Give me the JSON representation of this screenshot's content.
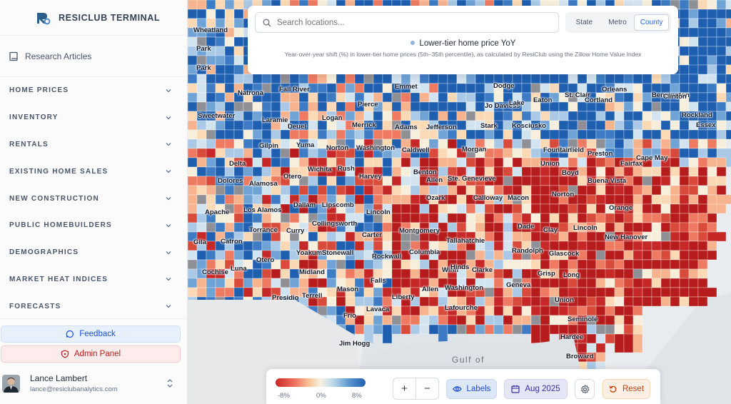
{
  "app": {
    "title": "RESICLUB TERMINAL"
  },
  "sidebar": {
    "research_label": "Research Articles",
    "items": [
      {
        "label": "HOME PRICES"
      },
      {
        "label": "INVENTORY"
      },
      {
        "label": "RENTALS"
      },
      {
        "label": "EXISTING HOME SALES"
      },
      {
        "label": "NEW CONSTRUCTION"
      },
      {
        "label": "PUBLIC HOMEBUILDERS"
      },
      {
        "label": "DEMOGRAPHICS"
      },
      {
        "label": "MARKET HEAT INDICES"
      },
      {
        "label": "FORECASTS"
      }
    ],
    "feedback_label": "Feedback",
    "admin_label": "Admin Panel",
    "user": {
      "name": "Lance Lambert",
      "email": "lance@resiclubanalytics.com"
    }
  },
  "search": {
    "placeholder": "Search locations..."
  },
  "geo_levels": {
    "options": [
      "State",
      "Metro",
      "County"
    ],
    "selected": "County"
  },
  "metric": {
    "title": "Lower-tier home price YoY",
    "description": "Year-over-year shift (%) in lower-tier home prices (5th–35th percentile), as calculated by ResiClub using the Zillow Home Value Index"
  },
  "legend": {
    "min_label": "-8%",
    "mid_label": "0%",
    "max_label": "8%"
  },
  "controls": {
    "zoom_in": "+",
    "zoom_out": "−",
    "labels_label": "Labels",
    "date_label": "Aug 2025",
    "reset_label": "Reset"
  },
  "map_labels": {
    "counties": [
      "Wheatland",
      "Park",
      "Park",
      "Natrona",
      "Sweetwater",
      "Laramie",
      "Fall River",
      "Logan",
      "Deuel",
      "Gilpin",
      "Yuma",
      "Delta",
      "Dolores",
      "Alamosa",
      "Otero",
      "Apache",
      "Los Alamos",
      "Catron",
      "Torrance",
      "Curry",
      "Gila",
      "Otero",
      "Cochise",
      "Luna",
      "Presidio",
      "Terrell",
      "Midland",
      "Yoakum",
      "Stonewall",
      "Dallam",
      "Lipscomb",
      "Collingsworth",
      "Norton",
      "Washington",
      "Wichita",
      "Rush",
      "Harvey",
      "Lincoln",
      "Carter",
      "Rockwall",
      "Mason",
      "Falls",
      "Frio",
      "Lavaca",
      "Jim Hogg",
      "Liberty",
      "Allen",
      "Pierce",
      "Emmet",
      "Merrick",
      "Adams",
      "Jefferson",
      "Caldwell",
      "Benton",
      "Montgomery",
      "Ozark",
      "Allen",
      "Ste. Genevieve",
      "Columbia",
      "Winn",
      "Tallahatchie",
      "Hinds",
      "Clarke",
      "Washington",
      "Lafourche",
      "Calloway",
      "Macon",
      "Dade",
      "Clay",
      "Randolph",
      "Glascock",
      "Geneva",
      "Grisp",
      "Long",
      "Union",
      "Seminole",
      "Hardee",
      "Broward",
      "Orange",
      "New Hanover",
      "Norton",
      "Lincoln",
      "Buena Vista",
      "Boyd",
      "Preston",
      "Fairfax",
      "Cape May",
      "Fairfield",
      "Union",
      "Fountain",
      "Kosciusko",
      "Stark",
      "Morgan",
      "Jo Daviess",
      "Lake",
      "Dodge",
      "Eaton",
      "St. Clair",
      "Cortland",
      "Orleans",
      "Bennington",
      "Clinton",
      "Rockland",
      "Essex"
    ],
    "water": "Gulf of"
  },
  "colors": {
    "accent": "#2563eb",
    "negative": "#c62828",
    "positive": "#1f5fb0",
    "neutral": "#f7f2e1"
  }
}
